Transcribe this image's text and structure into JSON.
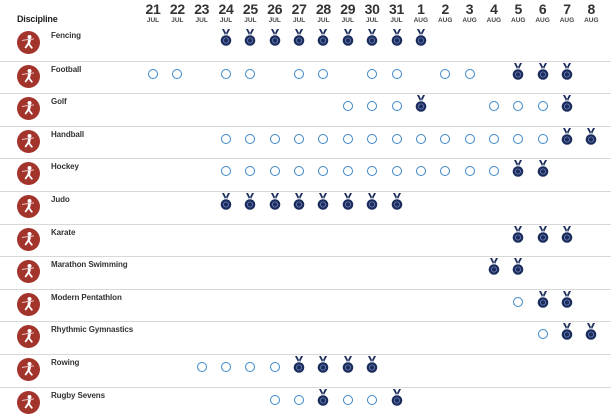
{
  "header": {
    "discipline_label": "Discipline",
    "days": [
      {
        "num": "21",
        "mon": "JUL"
      },
      {
        "num": "22",
        "mon": "JUL"
      },
      {
        "num": "23",
        "mon": "JUL"
      },
      {
        "num": "24",
        "mon": "JUL"
      },
      {
        "num": "25",
        "mon": "JUL"
      },
      {
        "num": "26",
        "mon": "JUL"
      },
      {
        "num": "27",
        "mon": "JUL"
      },
      {
        "num": "28",
        "mon": "JUL"
      },
      {
        "num": "29",
        "mon": "JUL"
      },
      {
        "num": "30",
        "mon": "JUL"
      },
      {
        "num": "31",
        "mon": "JUL"
      },
      {
        "num": "1",
        "mon": "AUG"
      },
      {
        "num": "2",
        "mon": "AUG"
      },
      {
        "num": "3",
        "mon": "AUG"
      },
      {
        "num": "4",
        "mon": "AUG"
      },
      {
        "num": "5",
        "mon": "AUG"
      },
      {
        "num": "6",
        "mon": "AUG"
      },
      {
        "num": "7",
        "mon": "AUG"
      },
      {
        "num": "8",
        "mon": "AUG"
      }
    ]
  },
  "legend_semantics": {
    "circle": "competition day",
    "medal": "medal event"
  },
  "colors": {
    "icon_bg": "#a2342c",
    "medal": "#1b2d5c",
    "circle": "#3d87c9"
  },
  "disciplines": [
    {
      "name": "Fencing",
      "icon": "fencing-icon",
      "days": [
        "",
        "",
        "",
        "M",
        "M",
        "M",
        "M",
        "M",
        "M",
        "M",
        "M",
        "M",
        "",
        "",
        "",
        "",
        "",
        "",
        ""
      ]
    },
    {
      "name": "Football",
      "icon": "football-icon",
      "days": [
        "C",
        "C",
        "",
        "C",
        "C",
        "",
        "C",
        "C",
        "",
        "C",
        "C",
        "",
        "C",
        "C",
        "",
        "M",
        "M",
        "M",
        ""
      ]
    },
    {
      "name": "Golf",
      "icon": "golf-icon",
      "days": [
        "",
        "",
        "",
        "",
        "",
        "",
        "",
        "",
        "C",
        "C",
        "C",
        "M",
        "",
        "",
        "C",
        "C",
        "C",
        "M",
        ""
      ]
    },
    {
      "name": "Handball",
      "icon": "handball-icon",
      "days": [
        "",
        "",
        "",
        "C",
        "C",
        "C",
        "C",
        "C",
        "C",
        "C",
        "C",
        "C",
        "C",
        "C",
        "C",
        "C",
        "C",
        "M",
        "M"
      ]
    },
    {
      "name": "Hockey",
      "icon": "hockey-icon",
      "days": [
        "",
        "",
        "",
        "C",
        "C",
        "C",
        "C",
        "C",
        "C",
        "C",
        "C",
        "C",
        "C",
        "C",
        "C",
        "M",
        "M",
        "",
        ""
      ]
    },
    {
      "name": "Judo",
      "icon": "judo-icon",
      "days": [
        "",
        "",
        "",
        "M",
        "M",
        "M",
        "M",
        "M",
        "M",
        "M",
        "M",
        "",
        "",
        "",
        "",
        "",
        "",
        "",
        ""
      ]
    },
    {
      "name": "Karate",
      "icon": "karate-icon",
      "days": [
        "",
        "",
        "",
        "",
        "",
        "",
        "",
        "",
        "",
        "",
        "",
        "",
        "",
        "",
        "",
        "M",
        "M",
        "M",
        ""
      ]
    },
    {
      "name": "Marathon Swimming",
      "icon": "marathon-swimming-icon",
      "days": [
        "",
        "",
        "",
        "",
        "",
        "",
        "",
        "",
        "",
        "",
        "",
        "",
        "",
        "",
        "M",
        "M",
        "",
        "",
        ""
      ]
    },
    {
      "name": "Modern Pentathlon",
      "icon": "modern-pentathlon-icon",
      "days": [
        "",
        "",
        "",
        "",
        "",
        "",
        "",
        "",
        "",
        "",
        "",
        "",
        "",
        "",
        "",
        "C",
        "M",
        "M",
        ""
      ]
    },
    {
      "name": "Rhythmic Gymnastics",
      "icon": "rhythmic-gymnastics-icon",
      "days": [
        "",
        "",
        "",
        "",
        "",
        "",
        "",
        "",
        "",
        "",
        "",
        "",
        "",
        "",
        "",
        "",
        "C",
        "M",
        "M"
      ]
    },
    {
      "name": "Rowing",
      "icon": "rowing-icon",
      "days": [
        "",
        "",
        "C",
        "C",
        "C",
        "C",
        "M",
        "M",
        "M",
        "M",
        "",
        "",
        "",
        "",
        "",
        "",
        "",
        "",
        ""
      ]
    },
    {
      "name": "Rugby Sevens",
      "icon": "rugby-sevens-icon",
      "days": [
        "",
        "",
        "",
        "",
        "",
        "C",
        "C",
        "M",
        "C",
        "C",
        "M",
        "",
        "",
        "",
        "",
        "",
        "",
        "",
        ""
      ]
    }
  ]
}
